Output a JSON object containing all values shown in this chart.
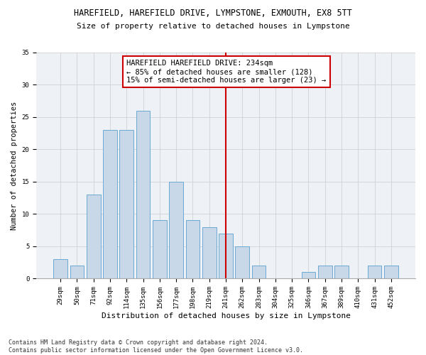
{
  "title": "HAREFIELD, HAREFIELD DRIVE, LYMPSTONE, EXMOUTH, EX8 5TT",
  "subtitle": "Size of property relative to detached houses in Lympstone",
  "xlabel": "Distribution of detached houses by size in Lympstone",
  "ylabel": "Number of detached properties",
  "bar_color": "#c8d8e8",
  "bar_edge_color": "#6aaad4",
  "categories": [
    "29sqm",
    "50sqm",
    "71sqm",
    "92sqm",
    "114sqm",
    "135sqm",
    "156sqm",
    "177sqm",
    "198sqm",
    "219sqm",
    "241sqm",
    "262sqm",
    "283sqm",
    "304sqm",
    "325sqm",
    "346sqm",
    "367sqm",
    "389sqm",
    "410sqm",
    "431sqm",
    "452sqm"
  ],
  "values": [
    3,
    2,
    13,
    23,
    23,
    26,
    9,
    15,
    9,
    8,
    7,
    5,
    2,
    0,
    0,
    1,
    2,
    2,
    0,
    2,
    2
  ],
  "vline_x": 10.0,
  "vline_color": "#cc0000",
  "annotation_text": "HAREFIELD HAREFIELD DRIVE: 234sqm\n← 85% of detached houses are smaller (128)\n15% of semi-detached houses are larger (23) →",
  "annotation_box_color": "#ffffff",
  "annotation_box_edge": "#cc0000",
  "ylim": [
    0,
    35
  ],
  "yticks": [
    0,
    5,
    10,
    15,
    20,
    25,
    30,
    35
  ],
  "background_color": "#eef2f7",
  "footer": "Contains HM Land Registry data © Crown copyright and database right 2024.\nContains public sector information licensed under the Open Government Licence v3.0.",
  "title_fontsize": 8.5,
  "subtitle_fontsize": 8,
  "xlabel_fontsize": 8,
  "ylabel_fontsize": 7.5,
  "tick_fontsize": 6.5,
  "annotation_fontsize": 7.5,
  "footer_fontsize": 6
}
